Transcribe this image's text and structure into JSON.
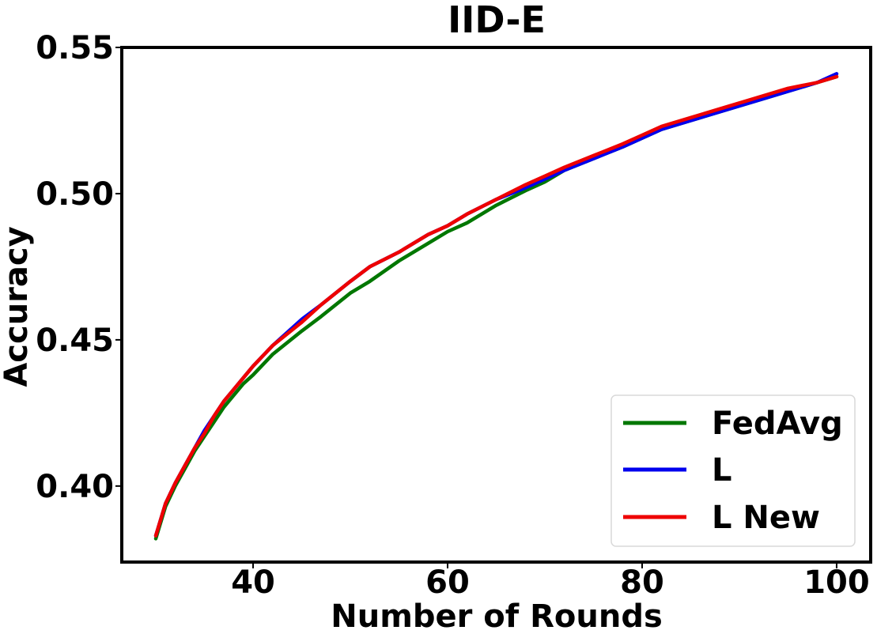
{
  "chart_data": {
    "type": "line",
    "title": "IID-E",
    "xlabel": "Number of Rounds",
    "ylabel": "Accuracy",
    "xlim": [
      26.5,
      103.5
    ],
    "ylim": [
      0.374,
      0.55
    ],
    "xticks": [
      40,
      60,
      80,
      100
    ],
    "xtick_labels": [
      "40",
      "60",
      "80",
      "100"
    ],
    "yticks": [
      0.4,
      0.45,
      0.5,
      0.55
    ],
    "ytick_labels": [
      "0.40",
      "0.45",
      "0.50",
      "0.55"
    ],
    "grid": false,
    "legend_position": "bottom-right",
    "x": [
      30,
      31,
      32,
      33,
      34,
      35,
      36,
      37,
      38,
      39,
      40,
      42,
      45,
      47,
      50,
      52,
      55,
      58,
      60,
      62,
      65,
      68,
      70,
      72,
      75,
      78,
      80,
      82,
      85,
      88,
      90,
      92,
      95,
      98,
      100
    ],
    "series": [
      {
        "name": "FedAvg",
        "color": "#007700",
        "values": [
          0.382,
          0.393,
          0.4,
          0.406,
          0.412,
          0.417,
          0.422,
          0.427,
          0.431,
          0.435,
          0.438,
          0.445,
          0.453,
          0.458,
          0.466,
          0.47,
          0.477,
          0.483,
          0.487,
          0.49,
          0.496,
          0.501,
          0.504,
          0.508,
          0.512,
          0.516,
          0.519,
          0.522,
          0.525,
          0.528,
          0.53,
          0.532,
          0.535,
          0.538,
          0.54
        ]
      },
      {
        "name": "L",
        "color": "#0000ee",
        "values": [
          0.383,
          0.394,
          0.401,
          0.407,
          0.413,
          0.419,
          0.424,
          0.429,
          0.433,
          0.437,
          0.441,
          0.448,
          0.457,
          0.462,
          0.47,
          0.475,
          0.48,
          0.486,
          0.489,
          0.493,
          0.498,
          0.502,
          0.505,
          0.508,
          0.512,
          0.516,
          0.519,
          0.522,
          0.525,
          0.528,
          0.53,
          0.532,
          0.535,
          0.538,
          0.541
        ]
      },
      {
        "name": "L New",
        "color": "#ee0000",
        "values": [
          0.383,
          0.394,
          0.401,
          0.407,
          0.413,
          0.418,
          0.424,
          0.429,
          0.433,
          0.437,
          0.441,
          0.448,
          0.456,
          0.462,
          0.47,
          0.475,
          0.48,
          0.486,
          0.489,
          0.493,
          0.498,
          0.503,
          0.506,
          0.509,
          0.513,
          0.517,
          0.52,
          0.523,
          0.526,
          0.529,
          0.531,
          0.533,
          0.536,
          0.538,
          0.54
        ]
      }
    ]
  }
}
